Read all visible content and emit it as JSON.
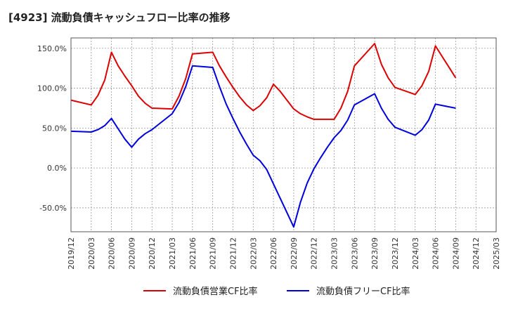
{
  "chart_data": {
    "type": "line",
    "title": "[4923]  流動負債キャッシュフロー比率の推移",
    "xlabel": "",
    "ylabel": "",
    "ylim": [
      -80,
      163
    ],
    "y_ticks": [
      -50,
      0,
      50,
      100,
      150
    ],
    "y_tick_labels": [
      "-50.0%",
      "0.0%",
      "50.0%",
      "100.0%",
      "150.0%"
    ],
    "x_tick_labels": [
      "2019/12",
      "2020/03",
      "2020/06",
      "2020/09",
      "2020/12",
      "2021/03",
      "2021/06",
      "2021/09",
      "2021/12",
      "2022/03",
      "2022/06",
      "2022/09",
      "2022/12",
      "2023/03",
      "2023/06",
      "2023/09",
      "2023/12",
      "2024/03",
      "2024/06",
      "2024/09",
      "2024/12",
      "2025/03"
    ],
    "grid": true,
    "legend_position": "bottom",
    "series": [
      {
        "name": "流動負債営業CF比率",
        "color": "#dd0000",
        "points": [
          [
            0,
            85
          ],
          [
            3,
            79
          ],
          [
            4,
            91
          ],
          [
            5,
            110
          ],
          [
            6,
            145
          ],
          [
            7,
            128
          ],
          [
            8,
            115
          ],
          [
            9,
            103
          ],
          [
            10,
            90
          ],
          [
            11,
            81
          ],
          [
            12,
            75
          ],
          [
            15,
            74
          ],
          [
            16,
            90
          ],
          [
            17,
            112
          ],
          [
            18,
            143
          ],
          [
            21,
            145
          ],
          [
            22,
            128
          ],
          [
            23,
            114
          ],
          [
            24,
            101
          ],
          [
            25,
            89
          ],
          [
            26,
            79
          ],
          [
            27,
            72
          ],
          [
            28,
            78
          ],
          [
            29,
            88
          ],
          [
            30,
            105
          ],
          [
            31,
            96
          ],
          [
            32,
            85
          ],
          [
            33,
            74
          ],
          [
            34,
            68
          ],
          [
            35,
            64
          ],
          [
            36,
            61
          ],
          [
            39,
            61
          ],
          [
            40,
            75
          ],
          [
            41,
            96
          ],
          [
            42,
            128
          ],
          [
            45,
            156
          ],
          [
            46,
            130
          ],
          [
            47,
            113
          ],
          [
            48,
            101
          ],
          [
            51,
            92
          ],
          [
            52,
            103
          ],
          [
            53,
            121
          ],
          [
            54,
            153
          ],
          [
            57,
            113
          ]
        ]
      },
      {
        "name": "流動負債フリーCF比率",
        "color": "#0000dd",
        "points": [
          [
            0,
            46
          ],
          [
            3,
            45
          ],
          [
            4,
            48
          ],
          [
            5,
            53
          ],
          [
            6,
            62
          ],
          [
            7,
            49
          ],
          [
            8,
            36
          ],
          [
            9,
            26
          ],
          [
            10,
            36
          ],
          [
            11,
            43
          ],
          [
            12,
            48
          ],
          [
            15,
            68
          ],
          [
            16,
            82
          ],
          [
            17,
            102
          ],
          [
            18,
            128
          ],
          [
            21,
            126
          ],
          [
            22,
            102
          ],
          [
            23,
            80
          ],
          [
            24,
            62
          ],
          [
            25,
            45
          ],
          [
            26,
            30
          ],
          [
            27,
            16
          ],
          [
            28,
            9
          ],
          [
            29,
            -2
          ],
          [
            30,
            -20
          ],
          [
            31,
            -38
          ],
          [
            32,
            -56
          ],
          [
            33,
            -74
          ],
          [
            34,
            -43
          ],
          [
            35,
            -19
          ],
          [
            36,
            -1
          ],
          [
            37,
            13
          ],
          [
            38,
            26
          ],
          [
            39,
            38
          ],
          [
            40,
            47
          ],
          [
            41,
            60
          ],
          [
            42,
            79
          ],
          [
            45,
            93
          ],
          [
            46,
            75
          ],
          [
            47,
            61
          ],
          [
            48,
            51
          ],
          [
            51,
            41
          ],
          [
            52,
            48
          ],
          [
            53,
            60
          ],
          [
            54,
            80
          ],
          [
            57,
            75
          ]
        ]
      }
    ]
  }
}
